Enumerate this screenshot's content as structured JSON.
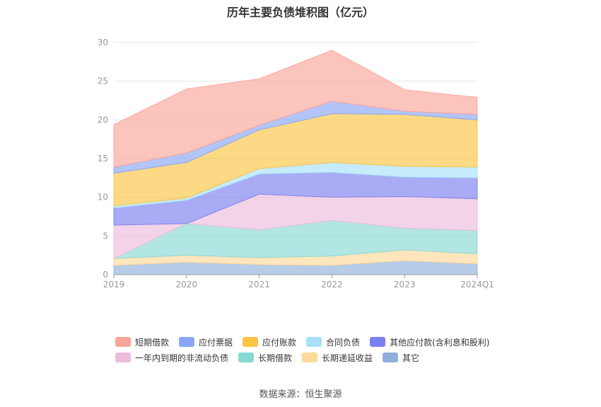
{
  "chart_data": {
    "type": "area",
    "stacked": true,
    "title": "历年主要负债堆积图（亿元）",
    "categories": [
      "2019",
      "2020",
      "2021",
      "2022",
      "2023",
      "2024Q1"
    ],
    "ylim": [
      0,
      30
    ],
    "yticks": [
      "0",
      "5",
      "10",
      "15",
      "20",
      "25",
      "30"
    ],
    "grid": true,
    "legend_position": "bottom",
    "series": [
      {
        "name": "其它",
        "color": "#8fb0dc",
        "values": [
          1.2,
          1.6,
          1.3,
          1.2,
          1.8,
          1.4
        ]
      },
      {
        "name": "长期递延收益",
        "color": "#ffd99a",
        "values": [
          0.9,
          0.9,
          0.9,
          1.2,
          1.4,
          1.3
        ]
      },
      {
        "name": "长期借款",
        "color": "#88d8d4",
        "values": [
          0.0,
          4.1,
          3.6,
          4.6,
          2.8,
          3.0
        ]
      },
      {
        "name": "一年内到期的非流动负债",
        "color": "#ebbcdc",
        "values": [
          4.3,
          0.0,
          4.6,
          3.0,
          4.1,
          4.1
        ]
      },
      {
        "name": "其他应付款(含利息和股利)",
        "color": "#7b7ff0",
        "values": [
          2.2,
          3.0,
          2.6,
          3.2,
          2.5,
          2.7
        ]
      },
      {
        "name": "合同负债",
        "color": "#a8e0f8",
        "values": [
          0.3,
          0.3,
          0.7,
          1.3,
          1.4,
          1.4
        ]
      },
      {
        "name": "应付账款",
        "color": "#fbc543",
        "values": [
          4.2,
          4.6,
          5.0,
          6.3,
          6.7,
          6.1
        ]
      },
      {
        "name": "应付票据",
        "color": "#89a6f6",
        "values": [
          0.8,
          1.2,
          0.6,
          1.6,
          0.4,
          0.7
        ]
      },
      {
        "name": "短期借款",
        "color": "#f9a59a",
        "values": [
          5.5,
          8.3,
          6.0,
          6.6,
          2.8,
          2.2
        ]
      }
    ]
  },
  "legend": {
    "row1": [
      "短期借款",
      "应付票据",
      "应付账款",
      "合同负债",
      "其他应付款(含利息和股利)"
    ],
    "row2": [
      "一年内到期的非流动负债",
      "长期借款",
      "长期递延收益",
      "其它"
    ],
    "row1_colors": [
      "#f9a59a",
      "#89a6f6",
      "#fbc543",
      "#a8e0f8",
      "#7b7ff0"
    ],
    "row2_colors": [
      "#ebbcdc",
      "#88d8d4",
      "#ffd99a",
      "#8fb0dc"
    ]
  },
  "source": "数据来源：恒生聚源"
}
